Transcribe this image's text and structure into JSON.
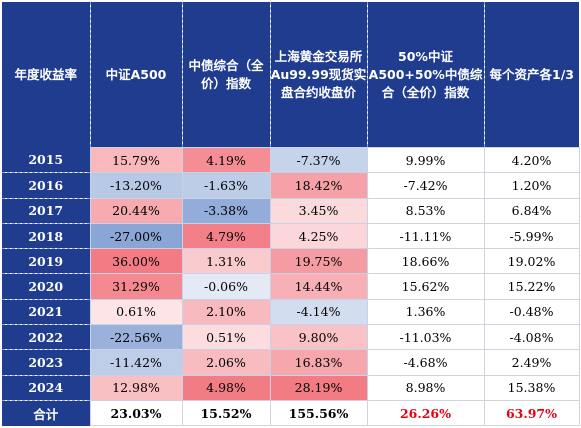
{
  "headers": [
    "年度收益率",
    "中证A500",
    "中债综合（全价）指数",
    "上海黄金交易所Au99.99现货实盘合约收盘价",
    "50%中证A500+50%中债综合（全价）指数",
    "每个资产各1/3"
  ],
  "rows": [
    {
      "year": "2015",
      "a500": "15.79%",
      "bond": "4.19%",
      "gold": "-7.37%",
      "mix5050": "9.99%",
      "third": "4.20%"
    },
    {
      "year": "2016",
      "a500": "-13.20%",
      "bond": "-1.63%",
      "gold": "18.42%",
      "mix5050": "-7.42%",
      "third": "1.20%"
    },
    {
      "year": "2017",
      "a500": "20.44%",
      "bond": "-3.38%",
      "gold": "3.45%",
      "mix5050": "8.53%",
      "third": "6.84%"
    },
    {
      "year": "2018",
      "a500": "-27.00%",
      "bond": "4.79%",
      "gold": "4.25%",
      "mix5050": "-11.11%",
      "third": "-5.99%"
    },
    {
      "year": "2019",
      "a500": "36.00%",
      "bond": "1.31%",
      "gold": "19.75%",
      "mix5050": "18.66%",
      "third": "19.02%"
    },
    {
      "year": "2020",
      "a500": "31.29%",
      "bond": "-0.06%",
      "gold": "14.44%",
      "mix5050": "15.62%",
      "third": "15.22%"
    },
    {
      "year": "2021",
      "a500": "0.61%",
      "bond": "2.10%",
      "gold": "-4.14%",
      "mix5050": "1.36%",
      "third": "-0.48%"
    },
    {
      "year": "2022",
      "a500": "-22.56%",
      "bond": "0.51%",
      "gold": "9.80%",
      "mix5050": "-11.03%",
      "third": "-4.08%"
    },
    {
      "year": "2023",
      "a500": "-11.42%",
      "bond": "2.06%",
      "gold": "16.83%",
      "mix5050": "-4.68%",
      "third": "2.49%"
    },
    {
      "year": "2024",
      "a500": "12.98%",
      "bond": "4.98%",
      "gold": "28.19%",
      "mix5050": "8.98%",
      "third": "15.38%"
    }
  ],
  "total": {
    "label": "合计",
    "a500": "23.03%",
    "bond": "15.52%",
    "gold": "155.56%",
    "mix5050": "26.26%",
    "third": "63.97%"
  },
  "colors": {
    "header_bg": "#1f3c8e",
    "header_text": "#ffffff",
    "positive_max": "#f0646e",
    "negative_max": "#5b82c6",
    "highlight_total": "#e60012"
  }
}
